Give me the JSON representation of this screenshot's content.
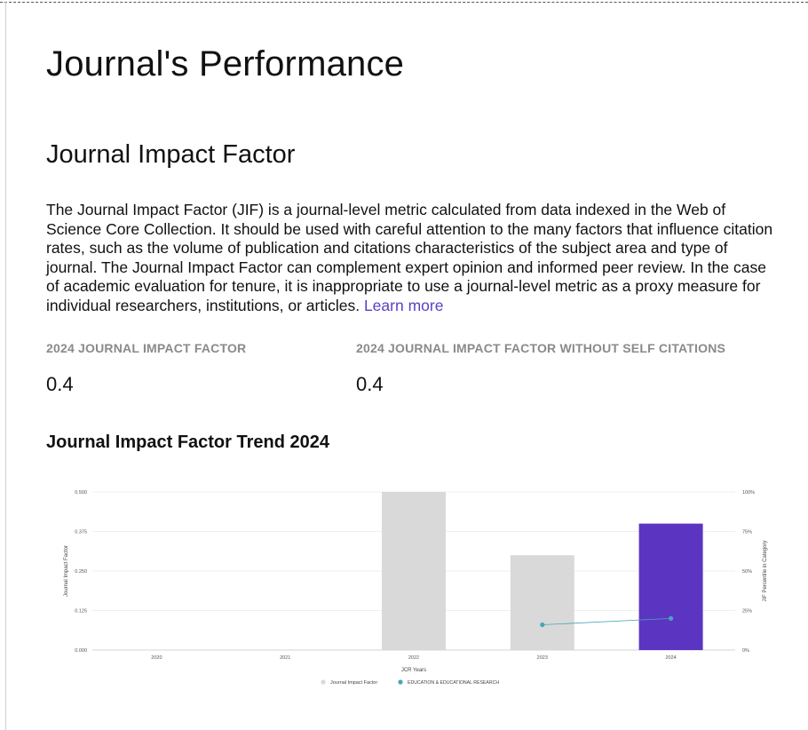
{
  "page": {
    "title": "Journal's Performance"
  },
  "jif_section": {
    "title": "Journal Impact Factor",
    "description": "The Journal Impact Factor (JIF) is a journal-level metric calculated from data indexed in the Web of Science Core Collection. It should be used with careful attention to the many factors that influence citation rates, such as the volume of publication and citations characteristics of the subject area and type of journal. The Journal Impact Factor can complement expert opinion and informed peer review. In the case of academic evaluation for tenure, it is inappropriate to use a journal-level metric as a proxy measure for individual researchers, institutions, or articles.",
    "learn_more": "Learn more"
  },
  "metrics": {
    "jif_label": "2024 JOURNAL IMPACT FACTOR",
    "jif_value": "0.4",
    "jif_no_self_label": "2024 JOURNAL IMPACT FACTOR WITHOUT SELF CITATIONS",
    "jif_no_self_value": "0.4"
  },
  "trend": {
    "title": "Journal Impact Factor Trend 2024"
  },
  "colors": {
    "bar_default": "#d9d9d9",
    "bar_highlight": "#5b35c2",
    "percentile_line": "#4aa3b9",
    "link": "#5b3fc4"
  },
  "chart_data": {
    "type": "bar",
    "categories": [
      "2020",
      "2021",
      "2022",
      "2023",
      "2024"
    ],
    "series": [
      {
        "name": "Journal Impact Factor",
        "axis": "left",
        "values": [
          null,
          null,
          0.5,
          0.3,
          0.4
        ],
        "highlight_index": 4
      },
      {
        "name": "EDUCATION & EDUCATIONAL RESEARCH",
        "axis": "right",
        "type": "line",
        "values": [
          null,
          null,
          null,
          16,
          20
        ]
      }
    ],
    "xlabel": "JCR Years",
    "ylabel": "Journal Impact Factor",
    "y2label": "JIF Percentile in Category",
    "ylim": [
      0,
      0.5
    ],
    "y2lim": [
      0,
      100
    ],
    "yticks": [
      "0.000",
      "0.125",
      "0.250",
      "0.375",
      "0.500"
    ],
    "y2ticks": [
      "0%",
      "25%",
      "50%",
      "75%",
      "100%"
    ],
    "grid": true,
    "legend": "bottom"
  }
}
